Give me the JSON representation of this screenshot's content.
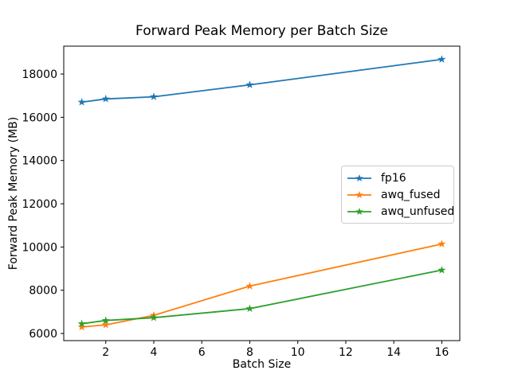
{
  "figure": {
    "background": "#ffffff",
    "frame_color": "#000000"
  },
  "chart_data": {
    "type": "line",
    "title": "Forward Peak Memory per Batch Size",
    "xlabel": "Batch Size",
    "ylabel": "Forward Peak Memory (MB)",
    "x": [
      1,
      2,
      4,
      8,
      16
    ],
    "series": [
      {
        "name": "fp16",
        "color": "#1f77b4",
        "marker": "star",
        "values": [
          16700,
          16850,
          16950,
          17500,
          18680
        ]
      },
      {
        "name": "awq_fused",
        "color": "#ff7f0e",
        "marker": "star",
        "values": [
          6300,
          6400,
          6840,
          8190,
          10140
        ]
      },
      {
        "name": "awq_unfused",
        "color": "#2ca02c",
        "marker": "star",
        "values": [
          6450,
          6600,
          6730,
          7150,
          8930
        ]
      }
    ],
    "xticks": [
      2,
      4,
      6,
      8,
      10,
      12,
      14,
      16
    ],
    "yticks": [
      6000,
      8000,
      10000,
      12000,
      14000,
      16000,
      18000
    ],
    "xlim": [
      0.25,
      16.75
    ],
    "ylim": [
      5670,
      19290
    ],
    "grid": false,
    "legend": {
      "position": "center right",
      "entries": [
        "fp16",
        "awq_fused",
        "awq_unfused"
      ]
    }
  }
}
